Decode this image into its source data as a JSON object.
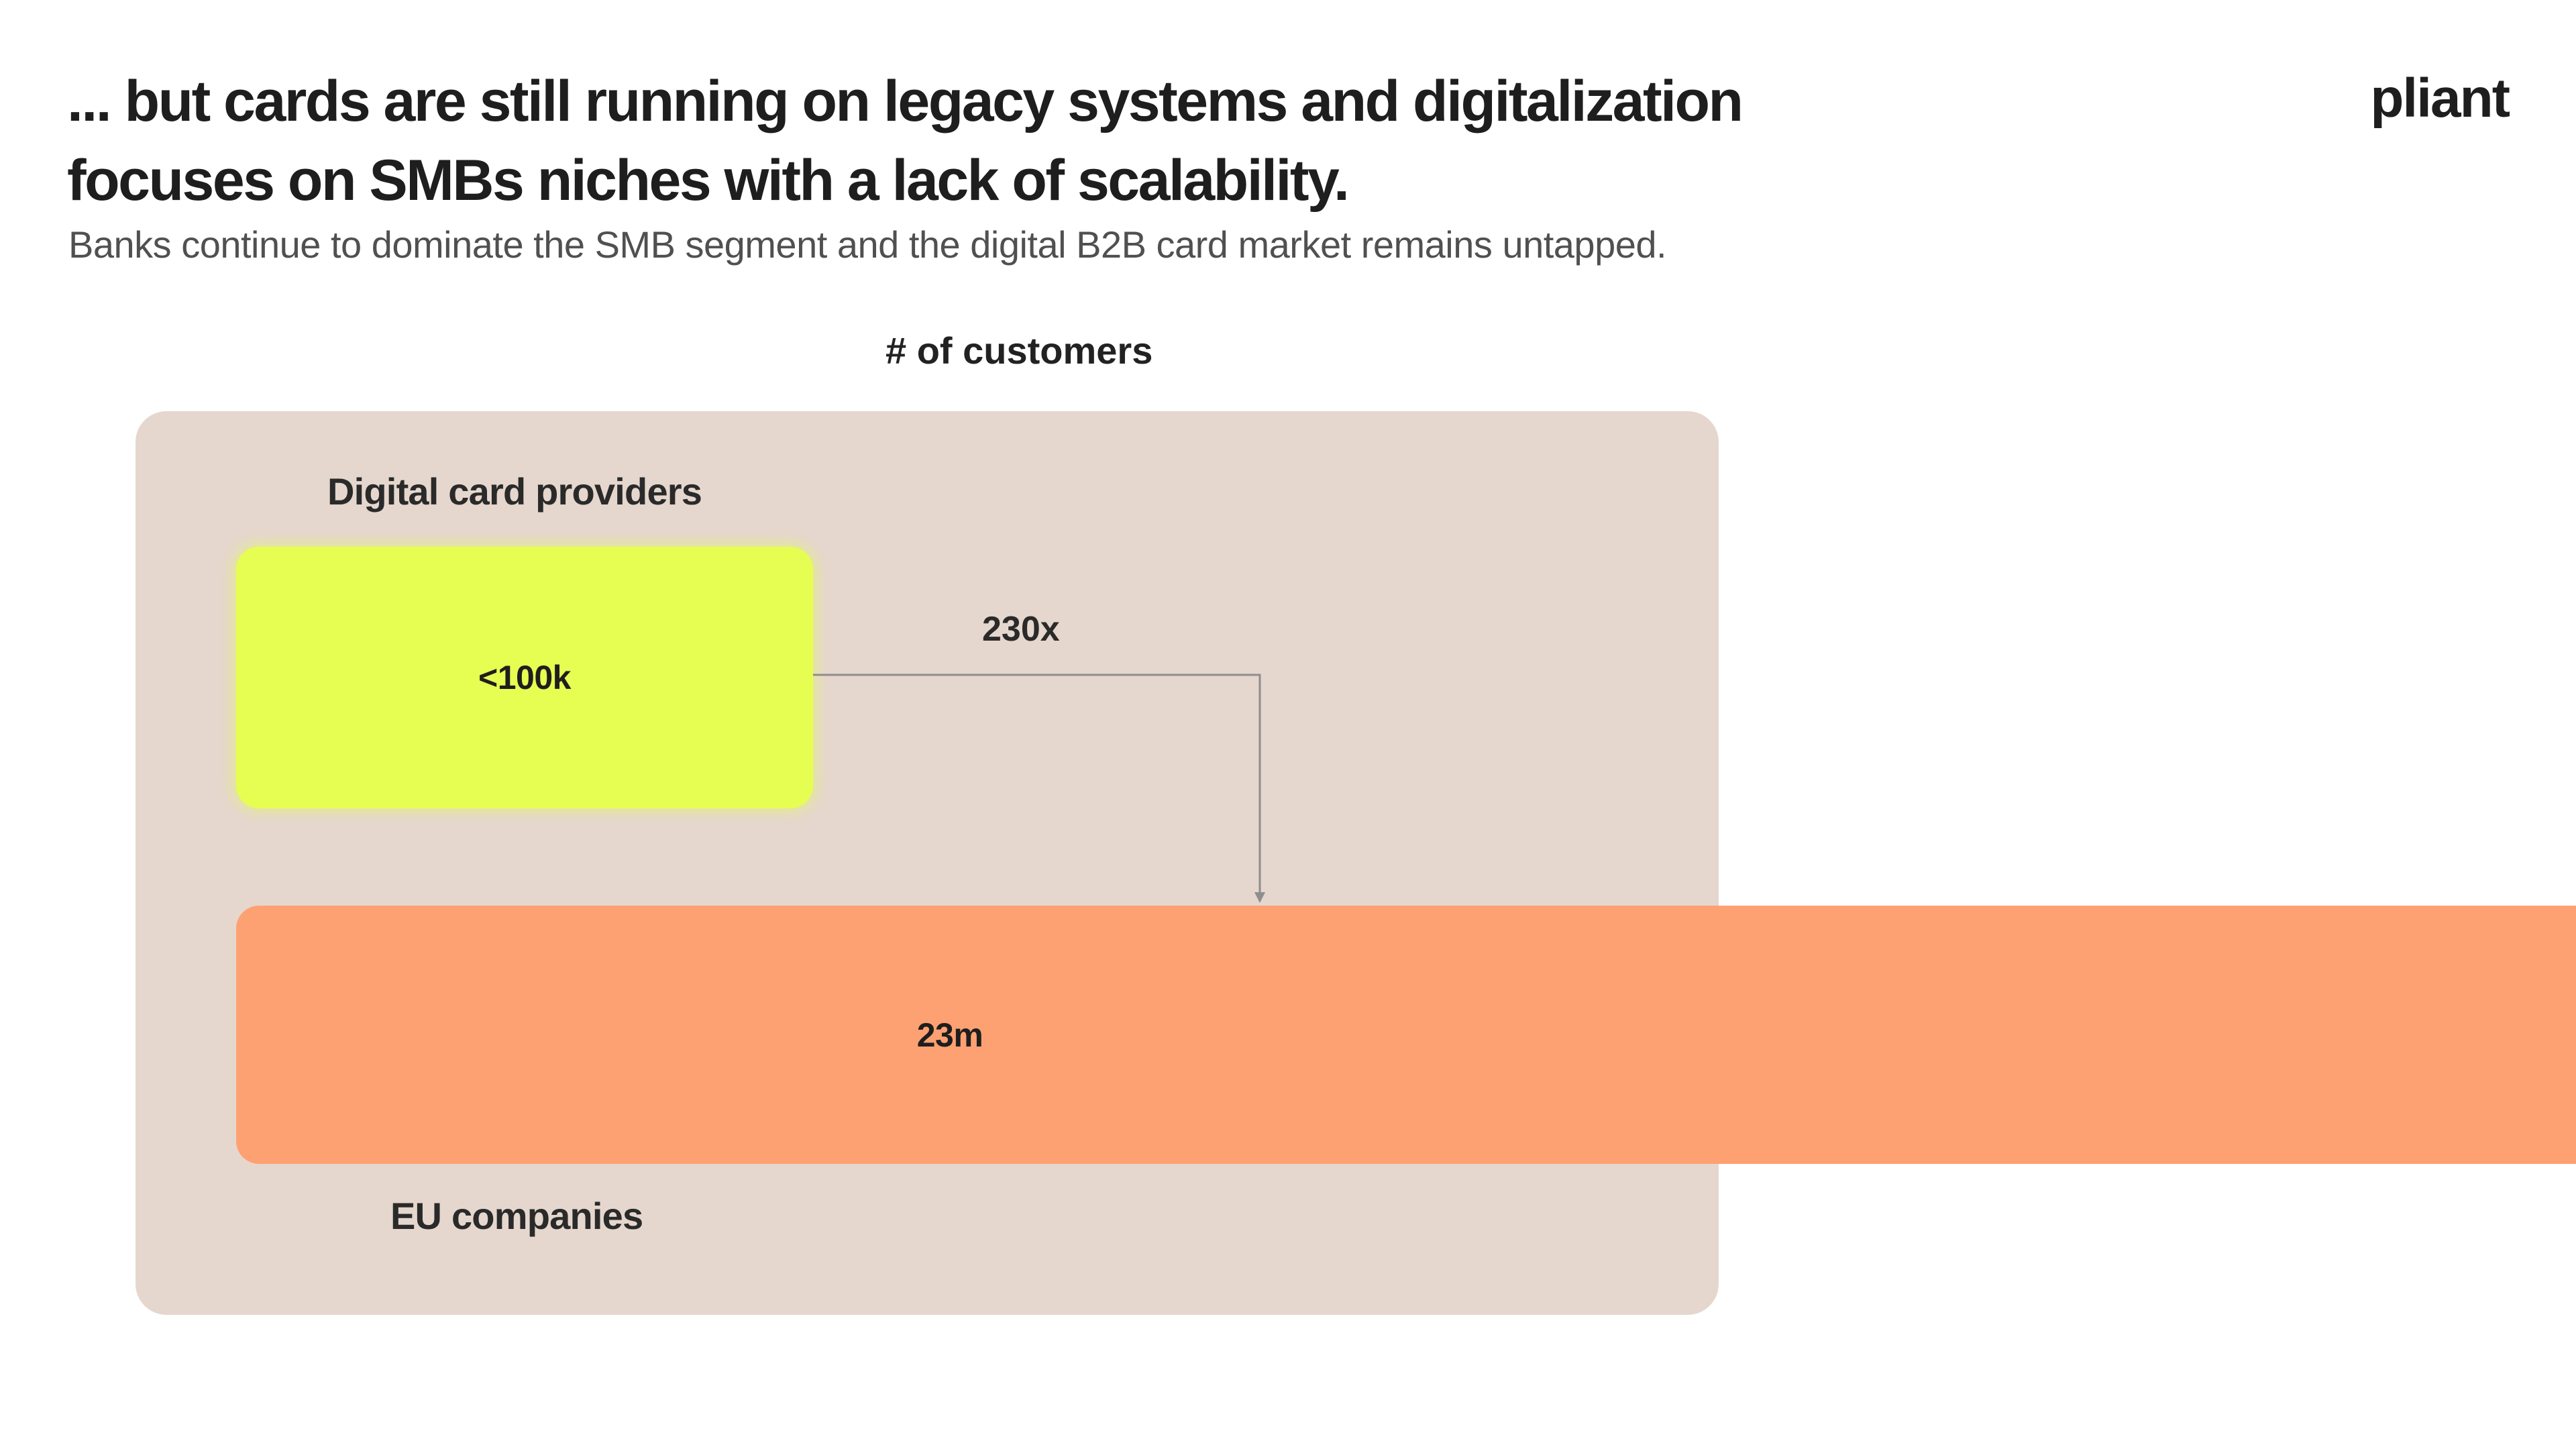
{
  "slide": {
    "headline_line1": "... but cards are still running on legacy systems and digitalization",
    "headline_line2": "focuses on SMBs niches with a lack of scalability.",
    "subtitle": "Banks continue to dominate the SMB segment and the digital B2B card market remains untapped.",
    "logo": "pliant"
  },
  "diagram": {
    "metric_label": "# of customers",
    "groups": [
      {
        "label": "Digital card providers",
        "value": "<100k",
        "color": "#e6fd52"
      },
      {
        "label": "EU companies",
        "value": "23m",
        "color": "#fea172"
      }
    ],
    "comparison": "230x",
    "panel_color": "#e5d7cd"
  }
}
